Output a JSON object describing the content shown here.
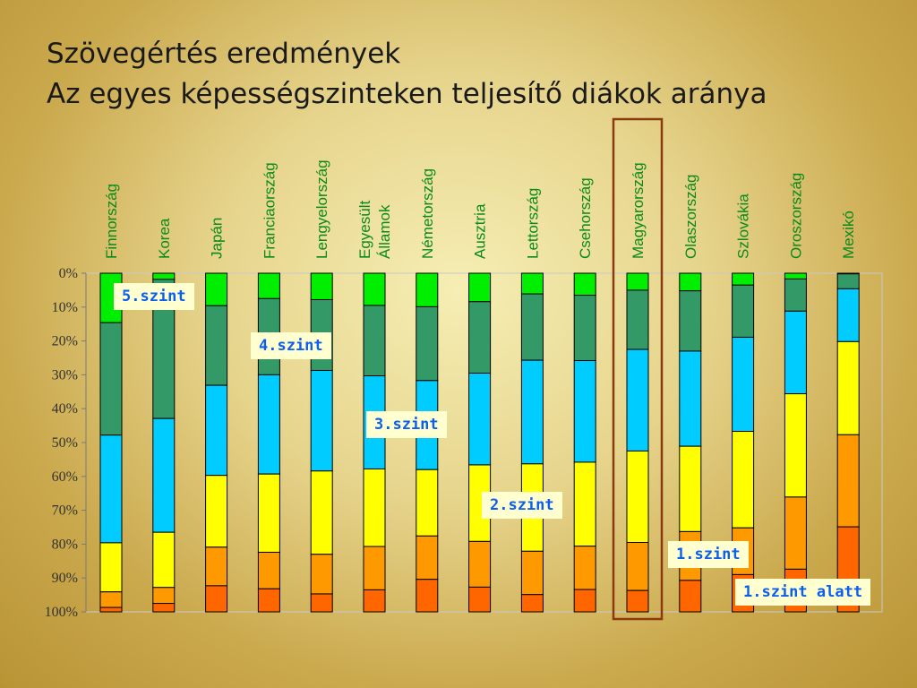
{
  "title": {
    "line1": "Szövegértés eredmények",
    "line2": "Az egyes képességszinteken teljesítő diákok aránya"
  },
  "chart_data": {
    "type": "bar",
    "stacked": true,
    "orientation": "vertical",
    "categories": [
      "Finnország",
      "Korea",
      "Japán",
      "Franciaország",
      "Lengyelország",
      [
        "Egyesült",
        "Államok"
      ],
      "Németország",
      "Ausztria",
      "Lettország",
      "Csehország",
      "Magyarország",
      "Olaszország",
      "Szlovákia",
      "Oroszország",
      "Mexikó"
    ],
    "highlighted_category": "Magyarország",
    "yticks": [
      "0%",
      "10%",
      "20%",
      "30%",
      "40%",
      "50%",
      "60%",
      "70%",
      "80%",
      "90%",
      "100%"
    ],
    "ylim": [
      0,
      100
    ],
    "y_inverted": true,
    "grid": false,
    "series": [
      {
        "name": "5.szint",
        "color": "#00ee00",
        "values": [
          14.6,
          1.8,
          9.6,
          7.5,
          7.8,
          9.5,
          9.9,
          8.4,
          6.1,
          6.5,
          5.0,
          5.2,
          3.5,
          1.7,
          0.2
        ]
      },
      {
        "name": "4.szint",
        "color": "#339966",
        "values": [
          33.2,
          41.1,
          23.5,
          22.5,
          20.9,
          20.8,
          21.8,
          21.1,
          19.6,
          19.3,
          17.5,
          17.8,
          15.4,
          9.5,
          4.4
        ]
      },
      {
        "name": "3.szint",
        "color": "#00ccff",
        "values": [
          31.8,
          33.6,
          26.6,
          29.3,
          29.7,
          27.5,
          26.3,
          27.1,
          30.6,
          30.0,
          30.0,
          28.1,
          27.8,
          24.4,
          15.6
        ]
      },
      {
        "name": "2.szint",
        "color": "#ffff00",
        "values": [
          14.5,
          16.3,
          21.2,
          23.1,
          24.6,
          22.9,
          19.6,
          22.6,
          25.8,
          24.8,
          27.0,
          25.2,
          28.5,
          30.5,
          27.5
        ]
      },
      {
        "name": "1.szint",
        "color": "#ff9900",
        "values": [
          4.6,
          4.7,
          11.4,
          10.8,
          11.7,
          12.8,
          12.8,
          13.5,
          12.8,
          12.8,
          14.2,
          14.4,
          13.8,
          21.3,
          27.2
        ]
      },
      {
        "name": "1.szint alatt",
        "color": "#ff6600",
        "values": [
          1.3,
          2.5,
          7.7,
          6.8,
          5.3,
          6.5,
          9.6,
          7.3,
          5.1,
          6.6,
          6.3,
          9.3,
          11.0,
          12.6,
          25.1
        ]
      }
    ]
  }
}
